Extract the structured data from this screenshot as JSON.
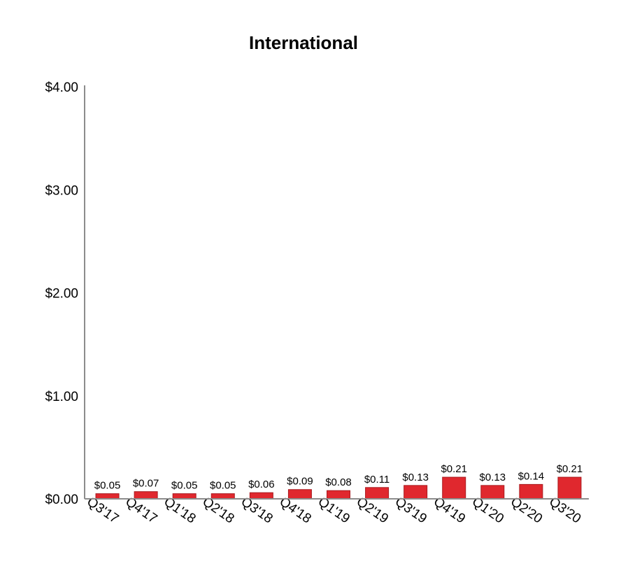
{
  "chart_data": {
    "type": "bar",
    "title": "International",
    "categories": [
      "Q3'17",
      "Q4'17",
      "Q1'18",
      "Q2'18",
      "Q3'18",
      "Q4'18",
      "Q1'19",
      "Q2'19",
      "Q3'19",
      "Q4'19",
      "Q1'20",
      "Q2'20",
      "Q3'20"
    ],
    "values": [
      0.05,
      0.07,
      0.05,
      0.05,
      0.06,
      0.09,
      0.08,
      0.11,
      0.13,
      0.21,
      0.13,
      0.14,
      0.21
    ],
    "data_labels": [
      "$0.05",
      "$0.07",
      "$0.05",
      "$0.05",
      "$0.06",
      "$0.09",
      "$0.08",
      "$0.11",
      "$0.13",
      "$0.21",
      "$0.13",
      "$0.14",
      "$0.21"
    ],
    "yticks": [
      0,
      1,
      2,
      3,
      4
    ],
    "ytick_labels": [
      "$0.00",
      "$1.00",
      "$2.00",
      "$3.00",
      "$4.00"
    ],
    "ylim": [
      0,
      4
    ],
    "grid": false,
    "bar_color": "#e0282e",
    "bar_edge_color": "#a81a1f",
    "axis_color": "#8c8c8c"
  }
}
